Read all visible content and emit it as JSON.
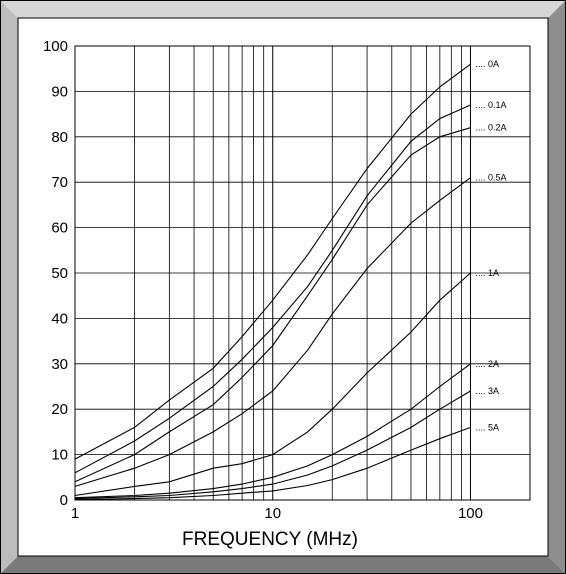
{
  "chart_data": {
    "type": "line",
    "title": "",
    "xlabel": "FREQUENCY (MHz)",
    "ylabel": "",
    "x_scale": "log",
    "xlim": [
      1,
      200
    ],
    "ylim": [
      0,
      100
    ],
    "grid": true,
    "x_tick_labels": [
      "1",
      "10",
      "100"
    ],
    "y_tick_labels": [
      "0",
      "10",
      "20",
      "30",
      "40",
      "50",
      "60",
      "70",
      "80",
      "90",
      "100"
    ],
    "series": [
      {
        "name": "0A",
        "x": [
          1,
          2,
          3,
          5,
          7,
          10,
          15,
          20,
          30,
          50,
          70,
          100
        ],
        "y": [
          9,
          16,
          22,
          29,
          36,
          44,
          54,
          62,
          73,
          85,
          91,
          96
        ]
      },
      {
        "name": "0.1A",
        "x": [
          1,
          2,
          3,
          5,
          7,
          10,
          15,
          20,
          30,
          50,
          70,
          100
        ],
        "y": [
          6,
          13,
          18,
          25,
          31,
          38,
          47,
          55,
          67,
          79,
          84,
          87
        ]
      },
      {
        "name": "0.2A",
        "x": [
          1,
          2,
          3,
          5,
          7,
          10,
          15,
          20,
          30,
          50,
          70,
          100
        ],
        "y": [
          4,
          10,
          15,
          21,
          27,
          34,
          45,
          53,
          65,
          76,
          80,
          82
        ]
      },
      {
        "name": "0.5A",
        "x": [
          1,
          2,
          3,
          5,
          7,
          10,
          15,
          20,
          30,
          50,
          70,
          100
        ],
        "y": [
          3,
          7,
          10,
          15,
          19,
          24,
          33,
          41,
          51,
          61,
          66,
          71
        ]
      },
      {
        "name": "1A",
        "x": [
          1,
          2,
          3,
          5,
          7,
          10,
          15,
          20,
          30,
          50,
          70,
          100
        ],
        "y": [
          1,
          3,
          4,
          7,
          8,
          10,
          15,
          20,
          28,
          37,
          44,
          50
        ]
      },
      {
        "name": "2A",
        "x": [
          1,
          2,
          3,
          5,
          7,
          10,
          15,
          20,
          30,
          50,
          70,
          100
        ],
        "y": [
          0.5,
          1,
          1.5,
          2.5,
          3.5,
          5,
          7.5,
          10,
          14,
          20,
          25,
          30
        ]
      },
      {
        "name": "3A",
        "x": [
          1,
          2,
          3,
          5,
          7,
          10,
          15,
          20,
          30,
          50,
          70,
          100
        ],
        "y": [
          0.3,
          0.7,
          1,
          1.8,
          2.5,
          3.5,
          5.5,
          7.5,
          11,
          16,
          20,
          24
        ]
      },
      {
        "name": "5A",
        "x": [
          1,
          2,
          3,
          5,
          7,
          10,
          15,
          20,
          30,
          50,
          70,
          100
        ],
        "y": [
          0.1,
          0.3,
          0.5,
          1,
          1.5,
          2,
          3.2,
          4.5,
          7,
          11,
          13.5,
          16
        ]
      }
    ]
  }
}
